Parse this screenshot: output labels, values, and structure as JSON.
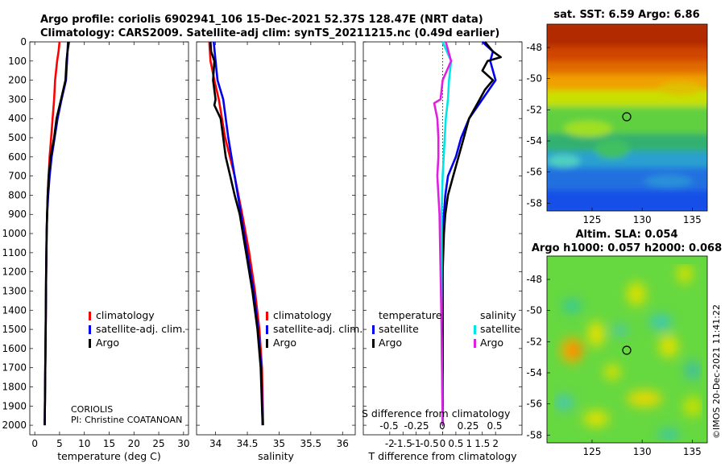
{
  "titles": {
    "line1": "Argo profile: coriolis 6902941_106 15-Dec-2021 52.37S 128.47E (NRT data)",
    "line2": "Climatology: CARS2009. Satellite-adj clim: synTS_20211215.nc (0.49d earlier)",
    "sst_title": "sat. SST: 6.59 Argo: 6.86",
    "sla_title1": "Altim. SLA: 0.054",
    "sla_title2": "Argo h1000: 0.057 h2000: 0.068",
    "watermark": "©IMOS 20-Dec-2021 11:41:22",
    "source_line1": "CORIOLIS",
    "source_line2": "PI: Christine COATANOAN"
  },
  "colors": {
    "climatology": "#ff0000",
    "satellite": "#0000ee",
    "argo": "#000000",
    "sat_salinity": "#00e5e5",
    "argo_salinity": "#e020e0"
  },
  "legend_profiles": [
    "climatology",
    "satellite-adj. clim.",
    "Argo"
  ],
  "legend_diff": {
    "temp_header": "temperature",
    "sal_header": "salinity",
    "satellite": "satellite",
    "argo": "Argo"
  },
  "diff_top_label": "S difference from climatology",
  "diff_top_ticks": [
    "-0.5",
    "-0.25",
    "0",
    "0.25",
    "0.5"
  ],
  "chart_data": [
    {
      "type": "line",
      "name": "temperature",
      "xlabel": "temperature (deg C)",
      "xlim": [
        -1,
        31
      ],
      "ylim": [
        2050,
        0
      ],
      "xticks": [
        0,
        5,
        10,
        15,
        20,
        25,
        30
      ],
      "yticks": [
        0,
        100,
        200,
        300,
        400,
        500,
        600,
        700,
        800,
        900,
        1000,
        1100,
        1200,
        1300,
        1400,
        1500,
        1600,
        1700,
        1800,
        1900,
        2000
      ],
      "series": [
        {
          "name": "climatology",
          "depth": [
            0,
            50,
            100,
            200,
            300,
            400,
            500,
            600,
            700,
            800,
            900,
            1000,
            1200,
            1500,
            2000
          ],
          "values": [
            5.0,
            4.8,
            4.5,
            4.1,
            3.9,
            3.6,
            3.3,
            3.0,
            2.8,
            2.6,
            2.5,
            2.4,
            2.3,
            2.2,
            2.0
          ]
        },
        {
          "name": "satellite-adj. clim.",
          "depth": [
            0,
            50,
            100,
            200,
            300,
            400,
            500,
            600,
            700,
            800,
            900,
            1000,
            1200,
            1500,
            2000
          ],
          "values": [
            6.7,
            6.6,
            6.5,
            6.3,
            5.4,
            4.6,
            4.0,
            3.4,
            3.0,
            2.7,
            2.5,
            2.4,
            2.3,
            2.2,
            2.0
          ]
        },
        {
          "name": "Argo",
          "depth": [
            0,
            50,
            100,
            200,
            300,
            400,
            500,
            600,
            700,
            800,
            900,
            1000,
            1200,
            1500,
            2000
          ],
          "values": [
            6.9,
            6.6,
            6.4,
            6.2,
            5.3,
            4.4,
            3.9,
            3.2,
            2.8,
            2.6,
            2.5,
            2.4,
            2.3,
            2.2,
            2.0
          ]
        }
      ]
    },
    {
      "type": "line",
      "name": "salinity",
      "xlabel": "salinity",
      "xlim": [
        33.7,
        36.2
      ],
      "ylim": [
        2050,
        0
      ],
      "xticks": [
        34,
        34.5,
        35,
        35.5,
        36
      ],
      "xticklabels": [
        "34",
        "34.5",
        "35",
        "35.5",
        "36"
      ],
      "series": [
        {
          "name": "climatology",
          "depth": [
            0,
            100,
            200,
            300,
            500,
            700,
            900,
            1100,
            1300,
            1500,
            1700,
            2000
          ],
          "values": [
            33.9,
            33.92,
            33.98,
            34.05,
            34.15,
            34.3,
            34.42,
            34.53,
            34.62,
            34.69,
            34.73,
            34.75
          ]
        },
        {
          "name": "satellite-adj. clim.",
          "depth": [
            0,
            100,
            200,
            300,
            500,
            700,
            900,
            1100,
            1300,
            1500,
            1700,
            2000
          ],
          "values": [
            33.97,
            34.0,
            34.03,
            34.12,
            34.2,
            34.3,
            34.4,
            34.5,
            34.6,
            34.67,
            34.72,
            34.74
          ]
        },
        {
          "name": "Argo",
          "depth": [
            0,
            50,
            100,
            200,
            300,
            330,
            400,
            500,
            600,
            700,
            800,
            900,
            1100,
            1300,
            1500,
            1700,
            2000
          ],
          "values": [
            33.92,
            33.93,
            33.98,
            33.96,
            34.0,
            33.98,
            34.08,
            34.12,
            34.16,
            34.23,
            34.3,
            34.38,
            34.48,
            34.58,
            34.66,
            34.71,
            34.74
          ]
        }
      ]
    },
    {
      "type": "line",
      "name": "difference",
      "xlabel": "T difference from climatology",
      "xlim": [
        -3,
        3
      ],
      "ylim": [
        2050,
        0
      ],
      "xticks": [
        -2,
        -1.5,
        -1,
        -0.5,
        0,
        0.5,
        1,
        1.5,
        2
      ],
      "xticklabels": [
        "-2",
        "-1.5",
        "-1",
        "-0.5",
        "0",
        "0.5",
        "1",
        "1.5",
        "2"
      ],
      "series": [
        {
          "name": "T satellite",
          "depth": [
            0,
            50,
            100,
            200,
            300,
            400,
            500,
            600,
            700,
            800,
            900,
            1000,
            1200,
            1500,
            2000
          ],
          "values": [
            1.5,
            1.9,
            1.8,
            2.0,
            1.5,
            1.0,
            0.7,
            0.5,
            0.2,
            0.1,
            0.05,
            0.02,
            0.0,
            0.0,
            0.0
          ]
        },
        {
          "name": "T Argo",
          "depth": [
            0,
            50,
            80,
            100,
            150,
            200,
            250,
            300,
            350,
            400,
            450,
            500,
            550,
            600,
            650,
            700,
            800,
            900,
            1000,
            1200,
            1500,
            2000
          ],
          "values": [
            1.6,
            1.9,
            2.2,
            1.7,
            1.5,
            1.9,
            1.6,
            1.4,
            1.2,
            1.0,
            0.9,
            0.8,
            0.7,
            0.6,
            0.5,
            0.4,
            0.2,
            0.1,
            0.05,
            0.0,
            0.0,
            0.0
          ]
        },
        {
          "name": "S satellite",
          "depth": [
            0,
            100,
            200,
            300,
            400,
            500,
            700,
            900,
            1200,
            1500,
            2000
          ],
          "values": [
            0.0,
            0.08,
            0.06,
            0.05,
            0.03,
            0.02,
            0.0,
            -0.01,
            -0.01,
            -0.01,
            0.0
          ]
        },
        {
          "name": "S Argo",
          "depth": [
            0,
            100,
            200,
            300,
            320,
            400,
            500,
            600,
            700,
            900,
            1200,
            1500,
            2000
          ],
          "values": [
            0.03,
            0.08,
            0.0,
            -0.02,
            -0.08,
            -0.05,
            -0.04,
            -0.04,
            -0.05,
            -0.03,
            -0.02,
            -0.01,
            0.0
          ]
        }
      ]
    },
    {
      "type": "heatmap",
      "name": "sst-map",
      "title": "sat. SST: 6.59 Argo: 6.86",
      "xlim": [
        120.5,
        136.5
      ],
      "ylim": [
        -58.5,
        -46.5
      ],
      "xticks": [
        125,
        130,
        135
      ],
      "yticks": [
        -48,
        -50,
        -52,
        -54,
        -56,
        -58
      ],
      "argo_position": [
        128.47,
        -52.37
      ]
    },
    {
      "type": "heatmap",
      "name": "sla-map",
      "title": "Altim. SLA: 0.054",
      "xlim": [
        120.5,
        136.5
      ],
      "ylim": [
        -58.5,
        -46.5
      ],
      "xticks": [
        125,
        130,
        135
      ],
      "yticks": [
        -48,
        -50,
        -52,
        -54,
        -56,
        -58
      ],
      "argo_position": [
        128.47,
        -52.37
      ]
    }
  ]
}
